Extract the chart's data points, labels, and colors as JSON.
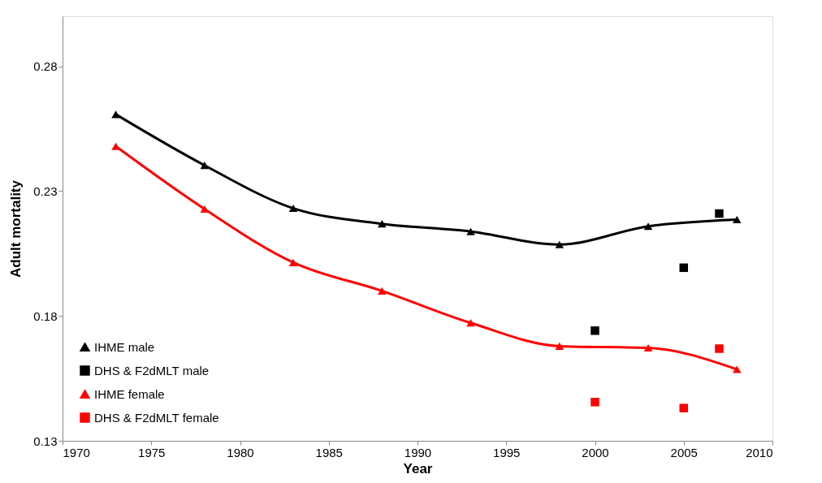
{
  "chart_data": {
    "type": "line",
    "xlabel": "Year",
    "ylabel": "Adult mortality",
    "xlim": [
      1970,
      2010
    ],
    "xticks": [
      1970,
      1975,
      1980,
      1985,
      1990,
      1995,
      2000,
      2005,
      2010
    ],
    "ylim": [
      0.13,
      0.3
    ],
    "yticks": [
      0.13,
      0.18,
      0.23,
      0.28
    ],
    "grid": false,
    "legend": "bottom left",
    "series": [
      {
        "name": "IHME male",
        "type": "line",
        "marker": "triangle",
        "color": "#000000",
        "x": [
          1973,
          1978,
          1983,
          1988,
          1993,
          1998,
          2003,
          2008
        ],
        "values": [
          0.2607,
          0.2403,
          0.2231,
          0.2169,
          0.2138,
          0.2086,
          0.2159,
          0.2186
        ]
      },
      {
        "name": "DHS & F2dMLT male",
        "type": "scatter",
        "marker": "square",
        "color": "#000000",
        "x": [
          2000,
          2005,
          2007
        ],
        "values": [
          0.1741,
          0.1993,
          0.221
        ]
      },
      {
        "name": "IHME female",
        "type": "line",
        "marker": "triangle",
        "color": "#ff0000",
        "x": [
          1973,
          1978,
          1983,
          1988,
          1993,
          1998,
          2003,
          2008
        ],
        "values": [
          0.2479,
          0.2228,
          0.2014,
          0.19,
          0.1772,
          0.1679,
          0.1672,
          0.1586
        ]
      },
      {
        "name": "DHS & F2dMLT female",
        "type": "scatter",
        "marker": "square",
        "color": "#ff0000",
        "x": [
          2000,
          2005,
          2007
        ],
        "values": [
          0.1455,
          0.1431,
          0.1669
        ]
      }
    ]
  }
}
